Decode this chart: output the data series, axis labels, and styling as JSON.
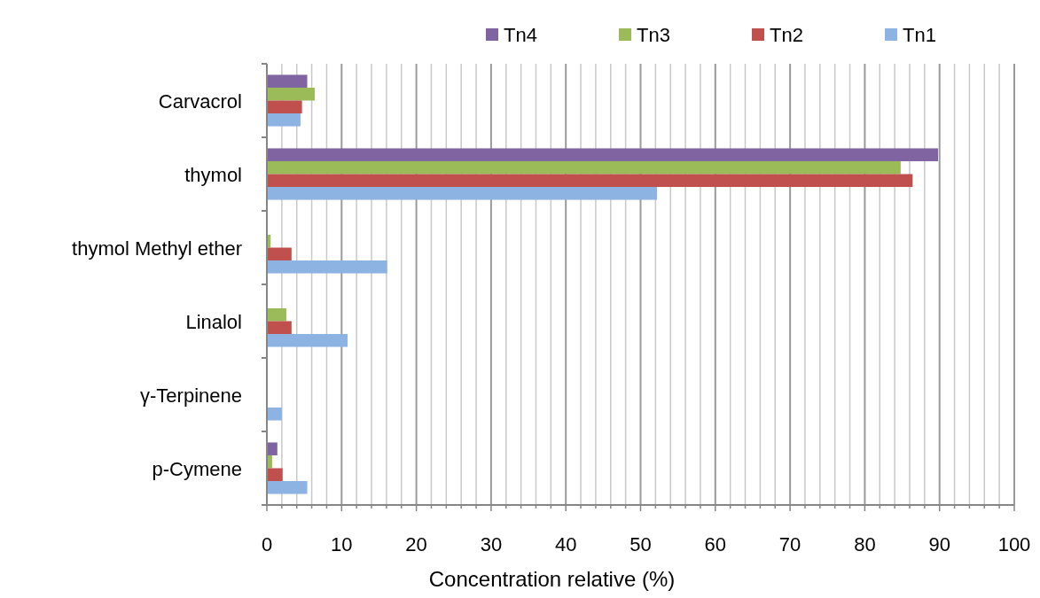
{
  "chart_data": {
    "type": "bar",
    "orientation": "horizontal",
    "xlabel": "Concentration relative (%)",
    "categories": [
      "Carvacrol",
      "thymol",
      "thymol Methyl ether",
      "Linalol",
      "γ-Terpinene",
      "p-Cymene"
    ],
    "series": [
      {
        "name": "Tn4",
        "color": "#8064a2",
        "values": [
          5.4,
          89.8,
          null,
          null,
          null,
          1.4
        ]
      },
      {
        "name": "Tn3",
        "color": "#9bbb59",
        "values": [
          6.4,
          84.8,
          0.5,
          2.6,
          null,
          0.7
        ]
      },
      {
        "name": "Tn2",
        "color": "#c0504d",
        "values": [
          4.7,
          86.4,
          3.3,
          3.3,
          null,
          2.1
        ]
      },
      {
        "name": "Tn1",
        "color": "#8db3e2",
        "values": [
          4.5,
          52.2,
          16.1,
          10.8,
          2.0,
          5.4
        ]
      }
    ],
    "xlim": [
      0,
      100
    ],
    "xticks": [
      0,
      {
        "value": 2,
        "label": null
      },
      {
        "value": 4,
        "label": null
      },
      {
        "value": 6,
        "label": null
      },
      {
        "value": 8,
        "label": null
      },
      10,
      {
        "value": 12,
        "label": null
      },
      {
        "value": 14,
        "label": null
      },
      {
        "value": 16,
        "label": null
      },
      {
        "value": 18,
        "label": null
      },
      20,
      {
        "value": 22,
        "label": null
      },
      {
        "value": 24,
        "label": null
      },
      {
        "value": 26,
        "label": null
      },
      {
        "value": 28,
        "label": null
      },
      30,
      {
        "value": 32,
        "label": null
      },
      {
        "value": 34,
        "label": null
      },
      {
        "value": 36,
        "label": null
      },
      {
        "value": 38,
        "label": null
      },
      40,
      {
        "value": 42,
        "label": null
      },
      {
        "value": 44,
        "label": null
      },
      {
        "value": 46,
        "label": null
      },
      {
        "value": 48,
        "label": null
      },
      50,
      {
        "value": 52,
        "label": null
      },
      {
        "value": 54,
        "label": null
      },
      {
        "value": 56,
        "label": null
      },
      {
        "value": 58,
        "label": null
      },
      60,
      {
        "value": 62,
        "label": null
      },
      {
        "value": 64,
        "label": null
      },
      {
        "value": 66,
        "label": null
      },
      {
        "value": 68,
        "label": null
      },
      70,
      {
        "value": 72,
        "label": null
      },
      {
        "value": 74,
        "label": null
      },
      {
        "value": 76,
        "label": null
      },
      {
        "value": 78,
        "label": null
      },
      80,
      {
        "value": 82,
        "label": null
      },
      {
        "value": 84,
        "label": null
      },
      {
        "value": 86,
        "label": null
      },
      {
        "value": 88,
        "label": null
      },
      90,
      {
        "value": 92,
        "label": null
      },
      {
        "value": 94,
        "label": null
      },
      {
        "value": 96,
        "label": null
      },
      {
        "value": 98,
        "label": null
      },
      100
    ],
    "grid": "x",
    "legend": "top"
  }
}
